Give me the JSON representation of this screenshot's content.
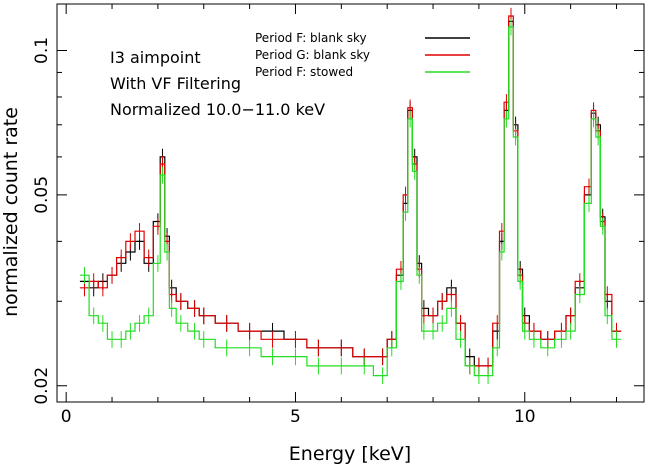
{
  "chart_data": {
    "type": "line",
    "xlabel": "Energy [keV]",
    "ylabel": "normalized count rate",
    "xlim": [
      -0.2,
      12.6
    ],
    "ylim": [
      0.0185,
      0.125
    ],
    "yscale": "log",
    "x_ticks": [
      {
        "value": 0,
        "label": "0"
      },
      {
        "value": 5,
        "label": "5"
      },
      {
        "value": 10,
        "label": "10"
      }
    ],
    "y_ticks": [
      {
        "value": 0.02,
        "label": "0.02"
      },
      {
        "value": 0.05,
        "label": "0.05"
      },
      {
        "value": 0.1,
        "label": "0.1"
      }
    ],
    "annotations": [
      "I3 aimpoint",
      "With VF Filtering",
      "Normalized 10.0−11.0 keV"
    ],
    "legend_position": "top-center",
    "grid": false,
    "x": [
      0.4,
      0.6,
      0.8,
      1.0,
      1.2,
      1.4,
      1.6,
      1.8,
      2.0,
      2.1,
      2.2,
      2.3,
      2.5,
      2.8,
      3.0,
      3.5,
      4.0,
      4.5,
      5.0,
      5.5,
      6.0,
      6.5,
      6.9,
      7.1,
      7.3,
      7.4,
      7.5,
      7.6,
      7.7,
      7.8,
      8.0,
      8.2,
      8.4,
      8.6,
      8.8,
      9.0,
      9.2,
      9.4,
      9.5,
      9.6,
      9.7,
      9.8,
      9.9,
      10.0,
      10.2,
      10.5,
      10.8,
      11.0,
      11.2,
      11.4,
      11.5,
      11.6,
      11.7,
      11.8,
      12.0
    ],
    "series": [
      {
        "name": "Period F: blank sky",
        "color": "#000000",
        "values": [
          0.033,
          0.032,
          0.033,
          0.034,
          0.036,
          0.038,
          0.04,
          0.036,
          0.044,
          0.06,
          0.041,
          0.032,
          0.03,
          0.029,
          0.028,
          0.027,
          0.026,
          0.026,
          0.025,
          0.024,
          0.024,
          0.023,
          0.023,
          0.025,
          0.034,
          0.048,
          0.075,
          0.06,
          0.036,
          0.029,
          0.028,
          0.03,
          0.032,
          0.027,
          0.023,
          0.022,
          0.022,
          0.026,
          0.04,
          0.075,
          0.115,
          0.07,
          0.035,
          0.028,
          0.026,
          0.025,
          0.026,
          0.028,
          0.032,
          0.05,
          0.074,
          0.07,
          0.045,
          0.03,
          0.026
        ]
      },
      {
        "name": "Period G: blank sky",
        "color": "#e00000",
        "values": [
          0.032,
          0.033,
          0.032,
          0.034,
          0.037,
          0.04,
          0.042,
          0.037,
          0.043,
          0.058,
          0.04,
          0.031,
          0.03,
          0.029,
          0.028,
          0.027,
          0.026,
          0.025,
          0.025,
          0.024,
          0.024,
          0.023,
          0.023,
          0.025,
          0.035,
          0.05,
          0.076,
          0.058,
          0.035,
          0.028,
          0.028,
          0.03,
          0.031,
          0.027,
          0.022,
          0.022,
          0.022,
          0.027,
          0.042,
          0.078,
          0.118,
          0.068,
          0.034,
          0.027,
          0.026,
          0.025,
          0.026,
          0.028,
          0.033,
          0.052,
          0.075,
          0.068,
          0.044,
          0.031,
          0.026
        ]
      },
      {
        "name": "Period F: stowed",
        "color": "#22dd22",
        "values": [
          0.034,
          0.028,
          0.027,
          0.025,
          0.025,
          0.026,
          0.027,
          0.028,
          0.036,
          0.055,
          0.038,
          0.029,
          0.027,
          0.026,
          0.025,
          0.024,
          0.024,
          0.023,
          0.023,
          0.022,
          0.022,
          0.022,
          0.021,
          0.024,
          0.033,
          0.046,
          0.072,
          0.056,
          0.034,
          0.026,
          0.026,
          0.027,
          0.029,
          0.025,
          0.022,
          0.021,
          0.021,
          0.024,
          0.038,
          0.072,
          0.112,
          0.066,
          0.033,
          0.026,
          0.025,
          0.024,
          0.025,
          0.026,
          0.031,
          0.048,
          0.072,
          0.066,
          0.043,
          0.028,
          0.025
        ]
      }
    ]
  }
}
